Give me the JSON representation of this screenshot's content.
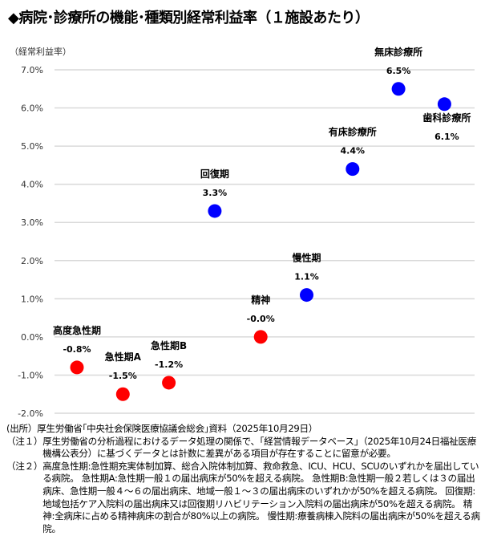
{
  "title": "◆病院･診療所の機能･種類別経常利益率（１施設あたり）",
  "colors": {
    "negative": "#ff0000",
    "positive": "#0000ff",
    "grid": "#d9d9d9"
  },
  "chart_data": {
    "type": "scatter",
    "ylabel": "（経常利益率）",
    "ylim": [
      -2.0,
      7.0
    ],
    "yticks": [
      "7.0%",
      "6.0%",
      "5.0%",
      "4.0%",
      "3.0%",
      "2.0%",
      "1.0%",
      "0.0%",
      "-1.0%",
      "-2.0%"
    ],
    "grid": true,
    "points": [
      {
        "name": "高度急性期",
        "value": -0.8,
        "label": "-0.8%",
        "color": "red"
      },
      {
        "name": "急性期A",
        "value": -1.5,
        "label": "-1.5%",
        "color": "red"
      },
      {
        "name": "急性期B",
        "value": -1.2,
        "label": "-1.2%",
        "color": "red"
      },
      {
        "name": "回復期",
        "value": 3.3,
        "label": "3.3%",
        "color": "blue"
      },
      {
        "name": "精神",
        "value": -0.0,
        "label": "-0.0%",
        "color": "red"
      },
      {
        "name": "慢性期",
        "value": 1.1,
        "label": "1.1%",
        "color": "blue"
      },
      {
        "name": "有床診療所",
        "value": 4.4,
        "label": "4.4%",
        "color": "blue"
      },
      {
        "name": "無床診療所",
        "value": 6.5,
        "label": "6.5%",
        "color": "blue"
      },
      {
        "name": "歯科診療所",
        "value": 6.1,
        "label": "6.1%",
        "color": "blue",
        "label_below": true
      }
    ]
  },
  "notes": {
    "source": "(出所）厚生労働省｢中央社会保険医療協議会総会｣資料（2025年10月29日）",
    "note1_tag": "（注１）",
    "note1": "厚生労働省の分析過程におけるデータ処理の関係で、「経営情報データベース」（2025年10月24日福祉医療機構公表分）に基づくデータとは計数に差異がある項目が存在することに留意が必要。",
    "note2_tag": "（注２）",
    "note2": "高度急性期:急性期充実体制加算、総合入院体制加算、救命救急、ICU、HCU、SCUのいずれかを届出している病院。 急性期A:急性期一般１の届出病床が50%を超える病院。 急性期B:急性期一般２若しくは３の届出病床、急性期一般４～６の届出病床、地域一般１～３の届出病床のいずれかが50%を超える病院。 回復期:地域包括ケア入院料の届出病床又は回復期リハビリテーション入院料の届出病床が50%を超える病院。 精神:全病床に占める精神病床の割合が80%以上の病院。 慢性期:療養病棟入院料の届出病床が50%を超える病院。"
  }
}
